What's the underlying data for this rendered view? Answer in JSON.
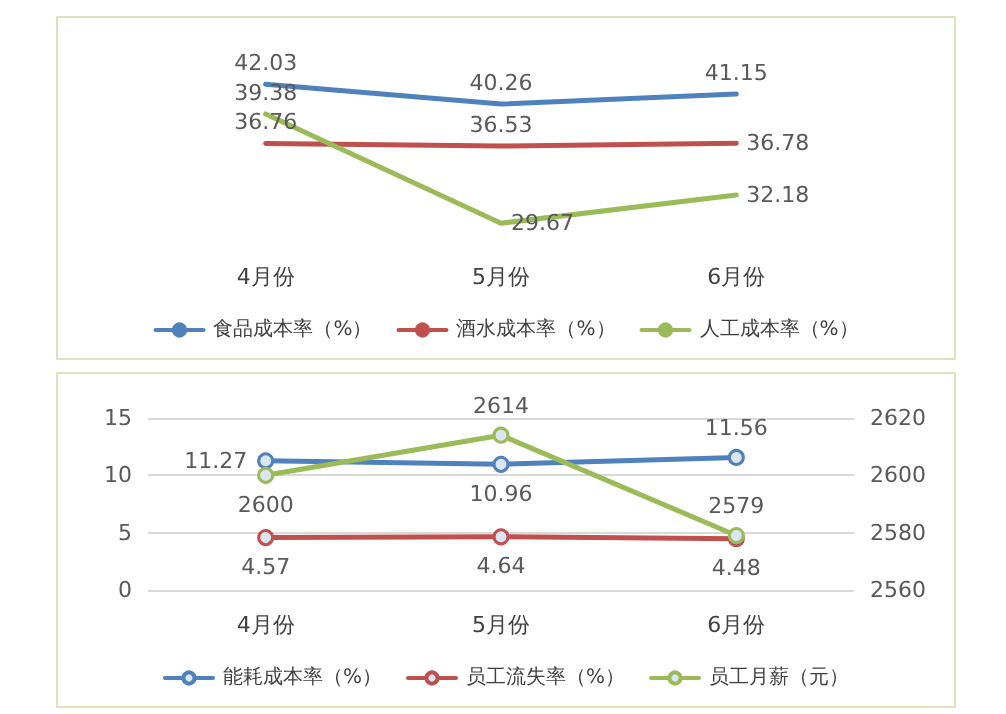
{
  "chart_data": [
    {
      "type": "line",
      "categories": [
        "4月份",
        "5月份",
        "6月份"
      ],
      "series": [
        {
          "name": "食品成本率（%）",
          "color": "#4f81bd",
          "values": [
            42.03,
            40.26,
            41.15
          ]
        },
        {
          "name": "酒水成本率（%）",
          "color": "#c0504d",
          "values": [
            36.76,
            36.53,
            36.78
          ]
        },
        {
          "name": "人工成本率（%）",
          "color": "#9bbb59",
          "values": [
            39.38,
            29.67,
            32.18
          ]
        }
      ],
      "data_labels": true,
      "marker": "none",
      "grid": false,
      "legend": "bottom",
      "tick_labels": "x"
    },
    {
      "type": "line",
      "categories": [
        "4月份",
        "5月份",
        "6月份"
      ],
      "series": [
        {
          "name": "能耗成本率（%）",
          "color": "#4f81bd",
          "values": [
            11.27,
            10.96,
            11.56
          ]
        },
        {
          "name": "员工流失率（%）",
          "color": "#c0504d",
          "values": [
            4.57,
            4.64,
            4.48
          ]
        },
        {
          "name": "员工月薪（元）",
          "color": "#9bbb59",
          "values": [
            2600,
            2614,
            2579
          ],
          "axis": "y2"
        }
      ],
      "ylim": [
        0,
        15
      ],
      "yticks": [
        0,
        5,
        10,
        15
      ],
      "y2lim": [
        2560,
        2620
      ],
      "y2ticks": [
        2560,
        2580,
        2600,
        2620
      ],
      "data_labels": true,
      "marker": "circle",
      "grid": "y",
      "legend": "bottom"
    }
  ]
}
